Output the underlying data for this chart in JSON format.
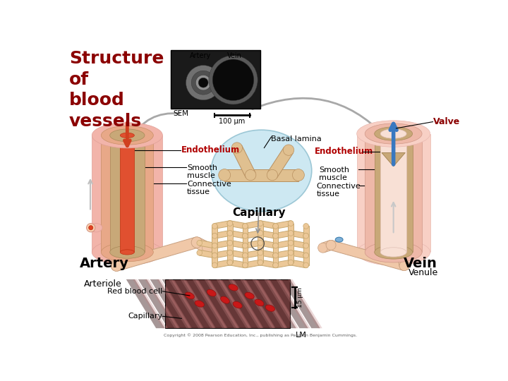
{
  "title": "Structure\nof\nblood\nvessels",
  "title_color": "#8B0000",
  "title_fontsize": 18,
  "bg_color": "#ffffff",
  "labels": {
    "artery_top": "Artery",
    "vein_top": "Vein",
    "sem": "SEM",
    "scale": "100 μm",
    "basal_lamina": "Basal lamina",
    "valve": "Valve",
    "endothelium_left": "Endothelium",
    "endothelium_right": "Endothelium",
    "smooth_muscle_left": "Smooth\nmuscle",
    "smooth_muscle_right": "Smooth\nmuscle",
    "connective_left": "Connective\ntissue",
    "connective_right": "Connective\ntissue",
    "capillary_center": "Capillary",
    "artery_label": "Artery",
    "vein_label": "Vein",
    "arteriole": "Arteriole",
    "venule": "Venule",
    "red_blood_cell": "Red blood cell",
    "capillary_bottom": "Capillary",
    "lm": "LM",
    "scale_15": "15 μm",
    "copyright": "Copyright © 2008 Pearson Education, Inc., publishing as Pearson Benjamin Cummings."
  },
  "colors": {
    "dark_red": "#8B0000",
    "red_label": "#B00000",
    "artery_outer": "#F2B8B0",
    "artery_mid": "#E8A090",
    "artery_wall": "#C8A878",
    "artery_blood": "#D85030",
    "vein_outer": "#F8D0C8",
    "vein_mid": "#F0B8B0",
    "vein_wall": "#C8A878",
    "vein_lumen": "#F8E0D8",
    "vein_arrow": "#4080C0",
    "cap_bg": "#C8E4F0",
    "cap_tube": "#E0C090",
    "cap_edge": "#B89060",
    "net_color": "#ECC898",
    "gray_arrow": "#A0A0A0",
    "black": "#000000",
    "white": "#ffffff"
  }
}
